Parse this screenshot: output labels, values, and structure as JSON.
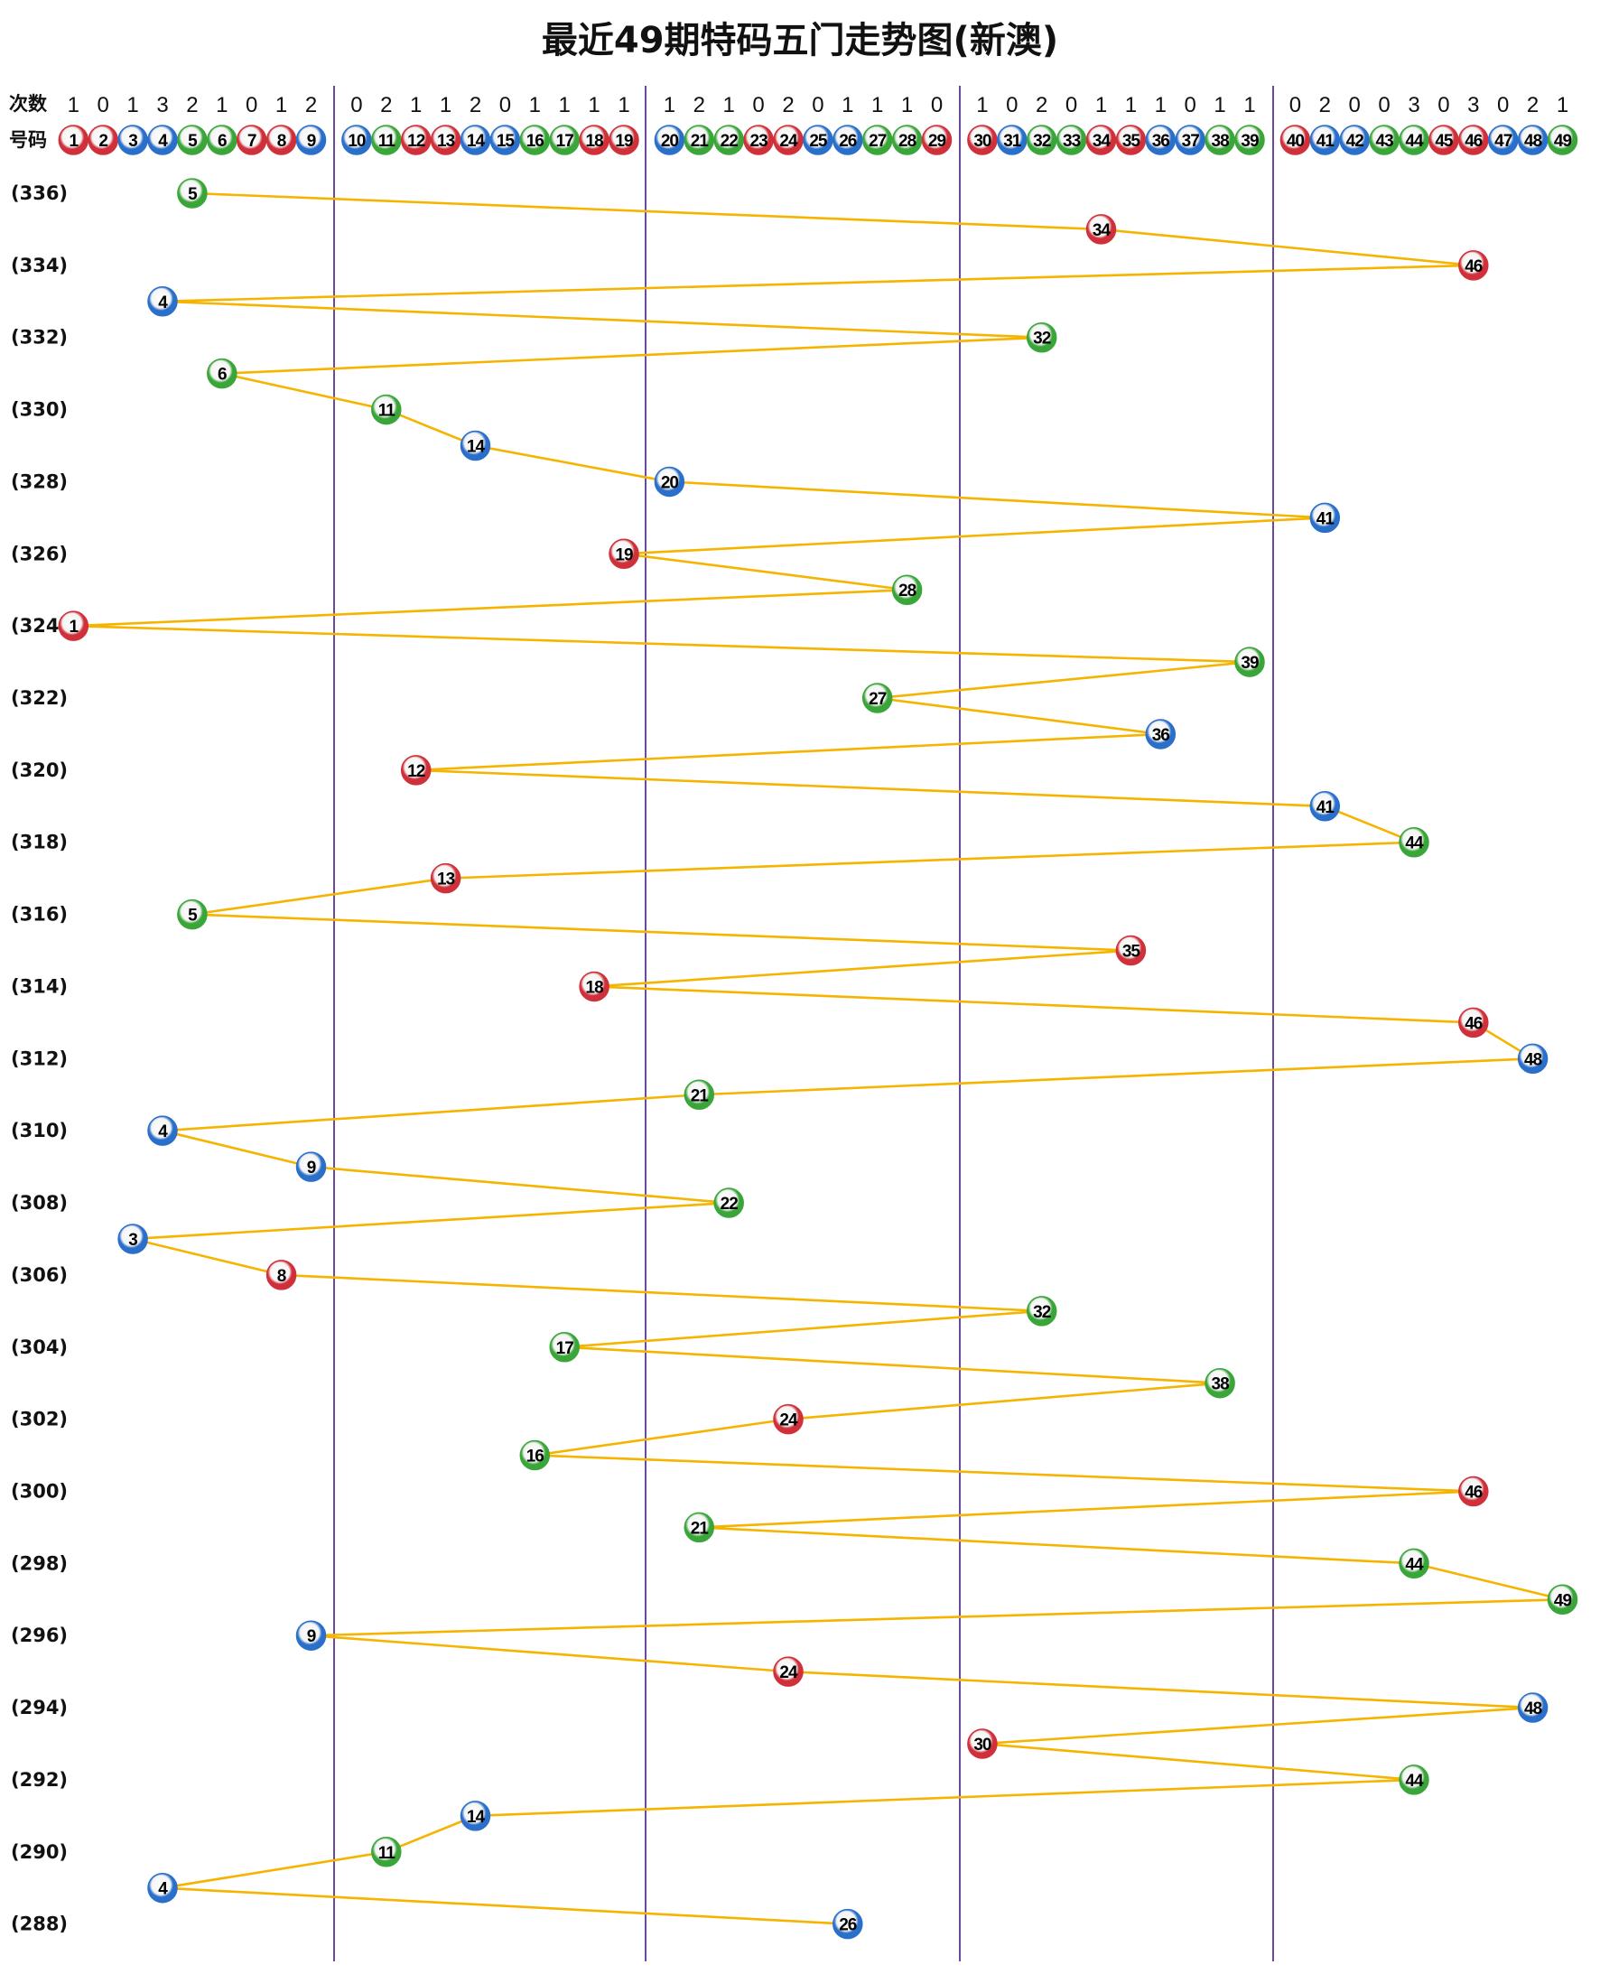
{
  "chart_data": {
    "type": "line",
    "title": "最近49期特码五门走势图(新澳)",
    "header": {
      "count_label": "次数",
      "number_label": "号码"
    },
    "numbers": [
      1,
      2,
      3,
      4,
      5,
      6,
      7,
      8,
      9,
      10,
      11,
      12,
      13,
      14,
      15,
      16,
      17,
      18,
      19,
      20,
      21,
      22,
      23,
      24,
      25,
      26,
      27,
      28,
      29,
      30,
      31,
      32,
      33,
      34,
      35,
      36,
      37,
      38,
      39,
      40,
      41,
      42,
      43,
      44,
      45,
      46,
      47,
      48,
      49
    ],
    "counts": [
      1,
      0,
      1,
      3,
      2,
      1,
      0,
      1,
      2,
      0,
      2,
      1,
      1,
      2,
      0,
      1,
      1,
      1,
      1,
      1,
      2,
      1,
      0,
      2,
      0,
      1,
      1,
      1,
      0,
      1,
      0,
      2,
      0,
      1,
      1,
      1,
      0,
      1,
      1,
      0,
      2,
      0,
      0,
      3,
      0,
      3,
      0,
      2,
      1
    ],
    "groups": [
      [
        1,
        9
      ],
      [
        10,
        19
      ],
      [
        20,
        29
      ],
      [
        30,
        39
      ],
      [
        40,
        49
      ]
    ],
    "row_labels": [
      "(336)",
      "(334)",
      "(332)",
      "(330)",
      "(328)",
      "(326)",
      "(324)",
      "(322)",
      "(320)",
      "(318)",
      "(316)",
      "(314)",
      "(312)",
      "(310)",
      "(308)",
      "(306)",
      "(304)",
      "(302)",
      "(300)",
      "(298)",
      "(296)",
      "(294)",
      "(292)",
      "(290)",
      "(288)"
    ],
    "draws": [
      5,
      34,
      46,
      4,
      32,
      6,
      11,
      14,
      20,
      41,
      19,
      28,
      1,
      39,
      27,
      36,
      12,
      41,
      44,
      13,
      5,
      35,
      18,
      46,
      48,
      21,
      4,
      9,
      22,
      3,
      8,
      32,
      17,
      38,
      24,
      16,
      46,
      21,
      44,
      49,
      9,
      24,
      48,
      30,
      44,
      14,
      11,
      4,
      26
    ],
    "ball_colors": {
      "red": [
        1,
        2,
        7,
        8,
        12,
        13,
        18,
        19,
        23,
        24,
        29,
        30,
        34,
        35,
        40,
        45,
        46
      ],
      "blue": [
        3,
        4,
        9,
        10,
        14,
        15,
        20,
        25,
        26,
        31,
        36,
        37,
        41,
        42,
        47,
        48
      ],
      "green": [
        5,
        6,
        11,
        16,
        17,
        21,
        22,
        27,
        28,
        32,
        33,
        38,
        39,
        43,
        44,
        49
      ]
    },
    "colors": {
      "red": "#d0303a",
      "blue": "#2a6fc9",
      "green": "#3aa63a",
      "line": "#f5b400",
      "divider": "#6b4a9e"
    }
  }
}
